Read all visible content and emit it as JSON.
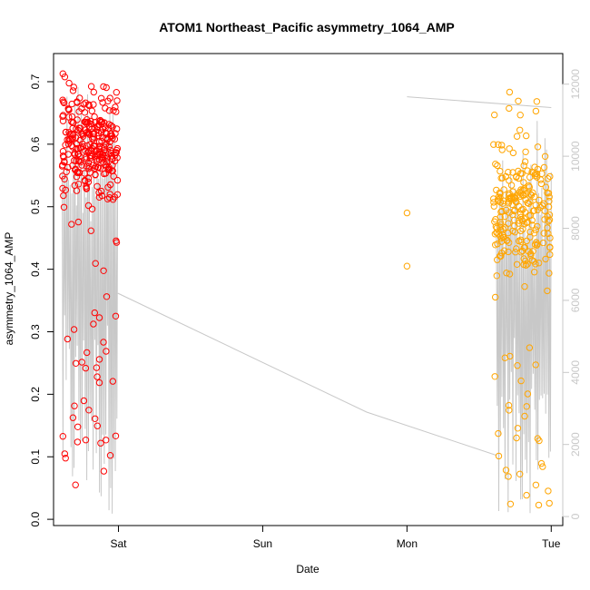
{
  "chart_data": {
    "type": "scatter",
    "title": "ATOM1 Northeast_Pacific asymmetry_1064_AMP",
    "xlabel": "Date",
    "ylabel": "asymmetry_1064_AMP",
    "x_ticks": [
      "Sat",
      "Sun",
      "Mon",
      "Tue"
    ],
    "x_range_days": [
      -0.45,
      3.08
    ],
    "ylim": [
      -0.01,
      0.745
    ],
    "y_ticks": [
      0.0,
      0.1,
      0.2,
      0.3,
      0.4,
      0.5,
      0.6,
      0.7
    ],
    "y_ticks_labels": [
      "0.0",
      "0.1",
      "0.2",
      "0.3",
      "0.4",
      "0.5",
      "0.6",
      "0.7"
    ],
    "y2_ticks": [
      0,
      2000,
      4000,
      6000,
      8000,
      10000,
      12000
    ],
    "y2_ticks_labels": [
      "0",
      "2000",
      "4000",
      "6000",
      "8000",
      "10000",
      "12000"
    ],
    "y2_range": [
      -250,
      12850
    ],
    "colors": {
      "series1": "#ff0000",
      "series2": "#ffa500",
      "line": "#c8c8c8"
    },
    "series": [
      {
        "cluster": [
          -0.39,
          -0.005
        ],
        "count": 330,
        "ymin": 0.05,
        "ymax": 0.72,
        "center": 0.6,
        "spread": 0.12
      },
      {
        "points": [
          [
            2.0,
            0.49
          ],
          [
            2.0,
            0.405
          ]
        ]
      },
      {
        "cluster": [
          2.6,
          3.0
        ],
        "count": 270,
        "ymin": 0.02,
        "ymax": 0.71,
        "center": 0.48,
        "spread": 0.14
      }
    ],
    "altitude_line": {
      "segments": [
        {
          "x0": -0.39,
          "x1": -0.005,
          "ymin": 50,
          "ymax": 12400,
          "osc": true
        },
        {
          "points": [
            [
              -0.005,
              6200
            ],
            [
              1.72,
              2900
            ],
            [
              2.62,
              1700
            ]
          ]
        },
        {
          "points": [
            [
              2.0,
              11650
            ],
            [
              3.0,
              11350
            ]
          ]
        },
        {
          "x0": 2.62,
          "x1": 3.0,
          "ymin": 50,
          "ymax": 11000,
          "osc": true
        }
      ]
    }
  }
}
